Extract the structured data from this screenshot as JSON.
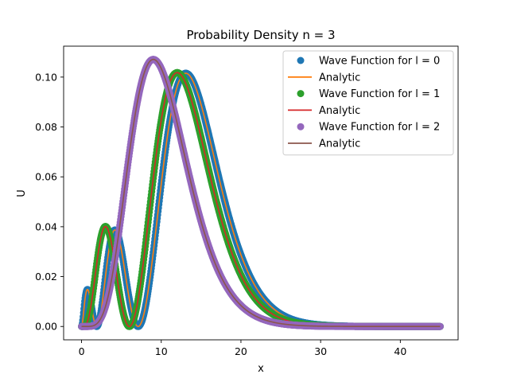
{
  "chart_data": {
    "type": "line",
    "title": "Probability Density n = 3",
    "xlabel": "x",
    "ylabel": "U",
    "xlim": [
      -2.25,
      47.25
    ],
    "ylim": [
      -0.00535,
      0.1124
    ],
    "xticks": [
      0,
      10,
      20,
      30,
      40
    ],
    "xtick_labels": [
      "0",
      "10",
      "20",
      "30",
      "40"
    ],
    "yticks": [
      0.0,
      0.02,
      0.04,
      0.06,
      0.08,
      0.1
    ],
    "ytick_labels": [
      "0.00",
      "0.02",
      "0.04",
      "0.06",
      "0.08",
      "0.10"
    ],
    "grid": false,
    "legend_position": "top-right",
    "x_range": [
      0,
      45
    ],
    "series": [
      {
        "name": "Wave Function for l = 0",
        "style": "markers",
        "color": "#1f77b4",
        "l": 0,
        "group": "l0"
      },
      {
        "name": "Analytic",
        "style": "line",
        "color": "#ff7f0e",
        "l": 0,
        "group": "l0"
      },
      {
        "name": "Wave Function for l = 1",
        "style": "markers",
        "color": "#2ca02c",
        "l": 1,
        "group": "l1"
      },
      {
        "name": "Analytic",
        "style": "line",
        "color": "#d62728",
        "l": 1,
        "group": "l1"
      },
      {
        "name": "Wave Function for l = 2",
        "style": "markers",
        "color": "#9467bd",
        "l": 2,
        "group": "l2"
      },
      {
        "name": "Analytic",
        "style": "line",
        "color": "#8c564b",
        "l": 2,
        "group": "l2"
      }
    ]
  }
}
